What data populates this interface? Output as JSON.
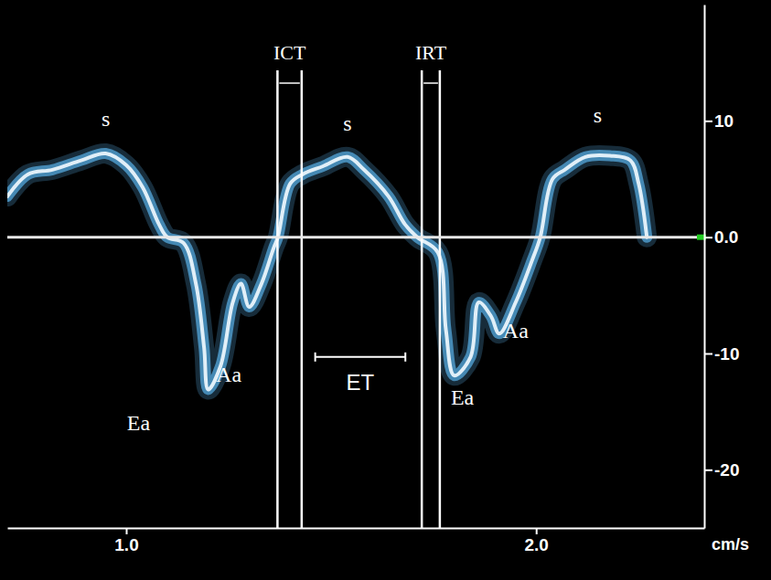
{
  "chart_data": {
    "type": "line",
    "color": "#5ab0e8",
    "y_label": "cm/s",
    "baseline": 0,
    "x": [
      0.71,
      0.76,
      0.82,
      0.89,
      0.95,
      1.0,
      1.04,
      1.08,
      1.1,
      1.14,
      1.17,
      1.19,
      1.2,
      1.23,
      1.26,
      1.28,
      1.3,
      1.33,
      1.36,
      1.37,
      1.4,
      1.43,
      1.48,
      1.54,
      1.58,
      1.64,
      1.68,
      1.71,
      1.76,
      1.78,
      1.8,
      1.84,
      1.86,
      1.89,
      1.91,
      1.95,
      1.99,
      2.01,
      2.04,
      2.07,
      2.12,
      2.18,
      2.23,
      2.25,
      2.27
    ],
    "values": [
      3.5,
      5.4,
      5.8,
      6.6,
      7.2,
      6.2,
      4.3,
      1.1,
      0,
      -0.5,
      -4.0,
      -9.5,
      -13.1,
      -11.1,
      -5.6,
      -4.0,
      -6.0,
      -4.0,
      -0.9,
      0,
      4.6,
      5.4,
      6.1,
      6.9,
      5.8,
      3.5,
      1.1,
      0,
      -1.3,
      -8.0,
      -11.9,
      -10.3,
      -5.6,
      -6.8,
      -8.3,
      -5.6,
      -2.0,
      0,
      5.0,
      5.8,
      6.9,
      7.0,
      6.6,
      4.6,
      0
    ],
    "xlim": [
      0.71,
      2.41
    ],
    "ylim": [
      -25,
      20
    ],
    "xticks": [
      {
        "value": 1,
        "label": "1.0"
      },
      {
        "value": 2,
        "label": "2.0"
      }
    ],
    "yticks": [
      10,
      {
        "value": 0,
        "label": "0.0"
      },
      -10,
      -20
    ],
    "grid": false,
    "annotations": [
      {
        "text": "s",
        "x": 0.95,
        "y": 10.0
      },
      {
        "text": "s",
        "x": 1.54,
        "y": 9.6
      },
      {
        "text": "s",
        "x": 2.15,
        "y": 10.3
      },
      {
        "text": "Ea",
        "x": 1.03,
        "y": -16.2
      },
      {
        "text": "Aa",
        "x": 1.25,
        "y": -12.0
      },
      {
        "text": "Ea",
        "x": 1.82,
        "y": -14.0
      },
      {
        "text": "Aa",
        "x": 1.95,
        "y": -8.2
      }
    ],
    "intervals": [
      {
        "label": "ICT",
        "start": 1.369,
        "end": 1.428
      },
      {
        "label": "IRT",
        "start": 1.721,
        "end": 1.765
      }
    ],
    "brackets": [
      {
        "label": "ET",
        "start": 1.461,
        "end": 1.681,
        "y": -10.3
      }
    ]
  }
}
